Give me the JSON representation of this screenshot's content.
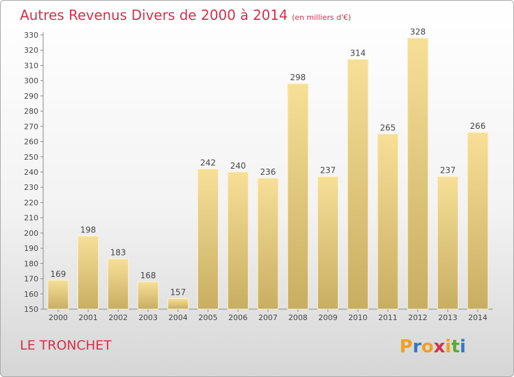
{
  "header": {
    "title": "Autres Revenus Divers de 2000 à 2014",
    "subtitle": "(en milliers d'€)"
  },
  "footer": {
    "commune": "LE TRONCHET",
    "logo_text": "Proxiti"
  },
  "colors": {
    "title": "#d1314c",
    "bar_top": "#f7df98",
    "bar_bottom": "#c8ae62",
    "logo_letters": [
      "#f0a020",
      "#2f78c8",
      "#f0a020",
      "#d1314c",
      "#f0a020",
      "#5aab33",
      "#2f78c8"
    ]
  },
  "chart_data": {
    "type": "bar",
    "categories": [
      "2000",
      "2001",
      "2002",
      "2003",
      "2004",
      "2005",
      "2006",
      "2007",
      "2008",
      "2009",
      "2010",
      "2011",
      "2012",
      "2013",
      "2014"
    ],
    "values": [
      169,
      198,
      183,
      168,
      157,
      242,
      240,
      236,
      298,
      237,
      314,
      265,
      328,
      237,
      266
    ],
    "ylim": [
      150,
      330
    ],
    "yticks": [
      150,
      160,
      170,
      180,
      190,
      200,
      210,
      220,
      230,
      240,
      250,
      260,
      270,
      280,
      290,
      300,
      310,
      320,
      330
    ],
    "grid": false,
    "legend": "none"
  }
}
